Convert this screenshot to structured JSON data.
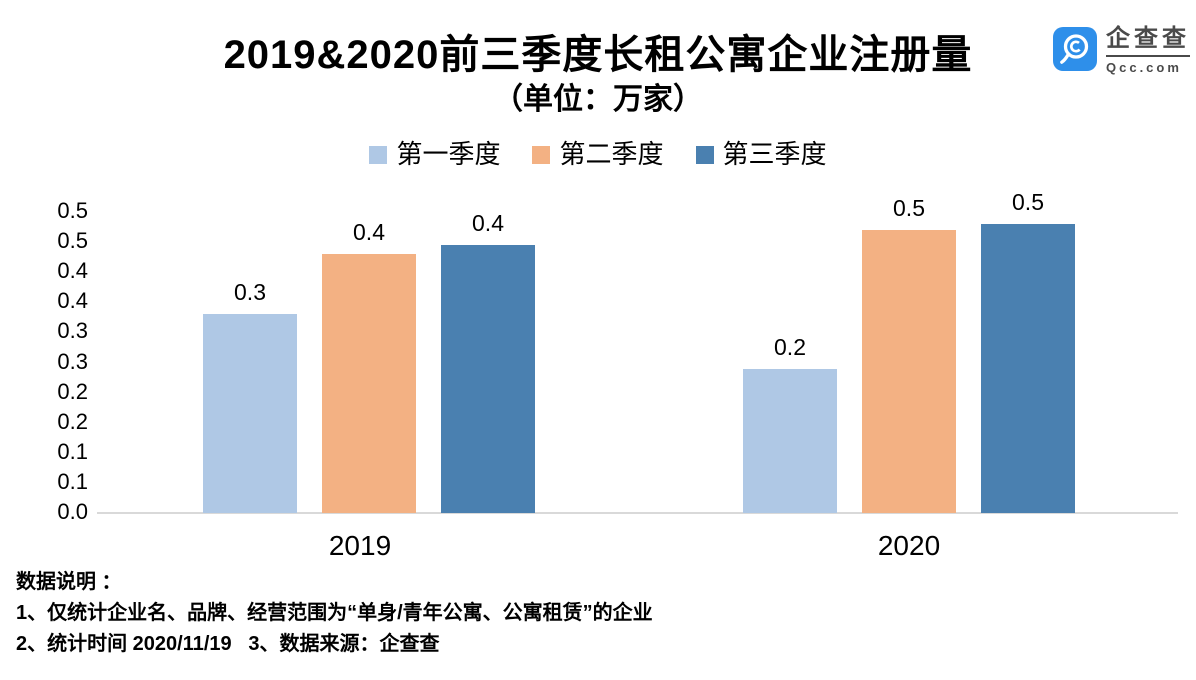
{
  "header": {
    "title": "2019&2020前三季度长租公寓企业注册量",
    "subtitle": "（单位：万家）"
  },
  "logo": {
    "icon": "qcc-magnifier-icon",
    "name": "企查查",
    "domain": "Qcc.com",
    "brand_color": "#2e8fea",
    "text_color": "#4a4a4a"
  },
  "chart_data": {
    "type": "bar",
    "title": "2019&2020前三季度长租公寓企业注册量",
    "subtitle": "（单位：万家）",
    "unit": "万家",
    "categories": [
      "2019",
      "2020"
    ],
    "series": [
      {
        "name": "第一季度",
        "color": "#afc8e5",
        "values": [
          0.33,
          0.24
        ],
        "labels": [
          "0.3",
          "0.2"
        ]
      },
      {
        "name": "第二季度",
        "color": "#f3b183",
        "values": [
          0.43,
          0.47
        ],
        "labels": [
          "0.4",
          "0.5"
        ]
      },
      {
        "name": "第三季度",
        "color": "#4a80b0",
        "values": [
          0.445,
          0.48
        ],
        "labels": [
          "0.4",
          "0.5"
        ]
      }
    ],
    "y_ticks_bottom_up": [
      "0.0",
      "0.1",
      "0.1",
      "0.2",
      "0.2",
      "0.3",
      "0.3",
      "0.4",
      "0.4",
      "0.5",
      "0.5"
    ],
    "ylim": [
      0,
      0.5
    ],
    "grid": false,
    "axis_color": "#d9d9d9",
    "legend_position": "top"
  },
  "footer": {
    "heading": "数据说明 ：",
    "note1": "1、仅统计企业名、品牌、经营范围为“单身/青年公寓、公寓租赁”的企业",
    "note2": "2、统计时间 2020/11/19   3、数据来源：企查查"
  }
}
